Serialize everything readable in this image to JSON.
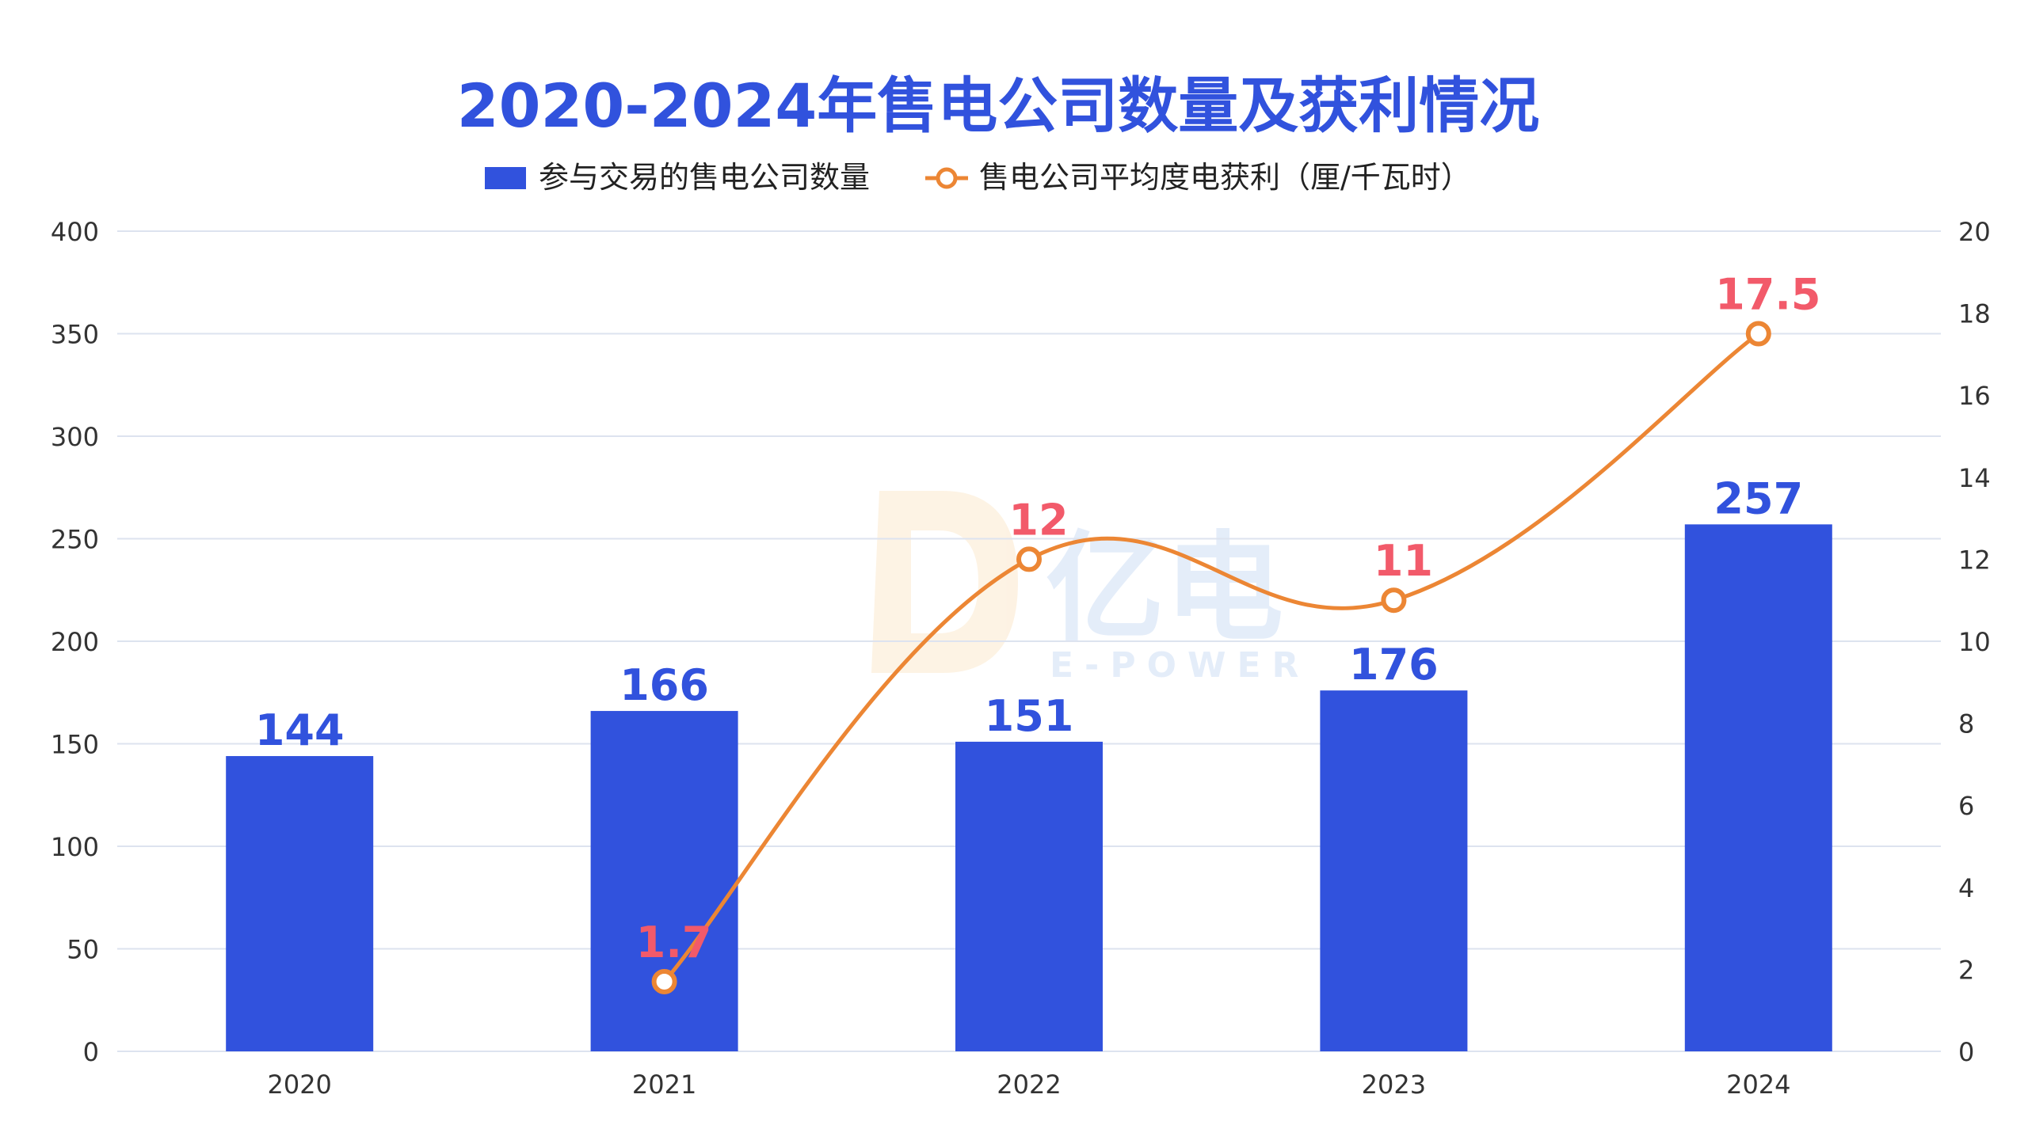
{
  "chart_data": {
    "type": "bar+line",
    "title": "2020-2024年售电公司数量及获利情况",
    "categories": [
      "2020",
      "2021",
      "2022",
      "2023",
      "2024"
    ],
    "series": [
      {
        "name": "参与交易的售电公司数量",
        "type": "bar",
        "axis": "left",
        "values": [
          144,
          166,
          151,
          176,
          257
        ],
        "labels": [
          "144",
          "166",
          "151",
          "176",
          "257"
        ],
        "color": "#3152dd"
      },
      {
        "name": "售电公司平均度电获利（厘/千瓦时）",
        "type": "line",
        "axis": "right",
        "values": [
          null,
          1.7,
          12,
          11,
          17.5
        ],
        "labels": [
          "",
          "1.7",
          "12",
          "11",
          "17.5"
        ],
        "color": "#ec8634",
        "label_color": "#f25a6a"
      }
    ],
    "y_left": {
      "min": 0,
      "max": 400,
      "ticks": [
        0,
        50,
        100,
        150,
        200,
        250,
        300,
        350,
        400
      ]
    },
    "y_right": {
      "min": 0,
      "max": 20,
      "ticks": [
        0,
        2,
        4,
        6,
        8,
        10,
        12,
        14,
        16,
        18,
        20
      ]
    },
    "grid": true,
    "legend_position": "top-center"
  },
  "watermark": {
    "brand": "亿电",
    "sub": "E-POWER"
  },
  "colors": {
    "accent": "#3152dd",
    "line": "#ec8634",
    "line_label": "#f25a6a",
    "grid": "#dde3ef"
  }
}
